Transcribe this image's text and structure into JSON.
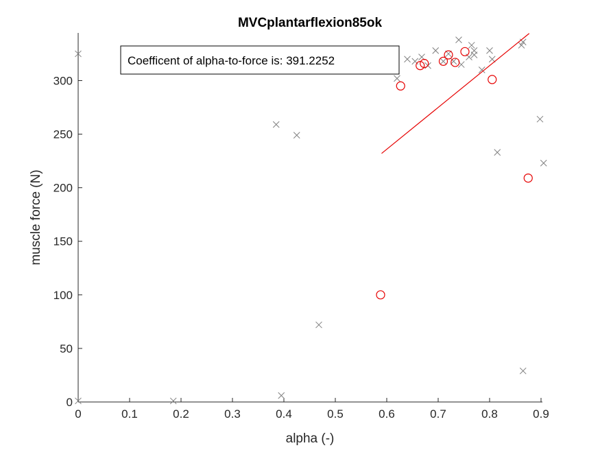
{
  "chart_data": {
    "type": "scatter",
    "title": "MVCplantarflexion85ok",
    "xlabel": "alpha (-)",
    "ylabel": "muscle force (N)",
    "xlim": [
      0,
      0.9
    ],
    "ylim": [
      0,
      340
    ],
    "xticks": [
      0,
      0.1,
      0.2,
      0.3,
      0.4,
      0.5,
      0.6,
      0.7,
      0.8,
      0.9
    ],
    "xtick_labels": [
      "0",
      "0.1",
      "0.2",
      "0.3",
      "0.4",
      "0.5",
      "0.6",
      "0.7",
      "0.8",
      "0.9"
    ],
    "yticks": [
      0,
      50,
      100,
      150,
      200,
      250,
      300
    ],
    "ytick_labels": [
      "0",
      "50",
      "100",
      "150",
      "200",
      "250",
      "300"
    ],
    "grid": false,
    "annotation": "Coefficent of alpha-to-force is: 391.2252",
    "series": [
      {
        "marker": "x",
        "color": "#7f7f7f",
        "points": [
          [
            0.0,
            325
          ],
          [
            0.0,
            1
          ],
          [
            0.185,
            1
          ],
          [
            0.385,
            259
          ],
          [
            0.395,
            6
          ],
          [
            0.425,
            249
          ],
          [
            0.468,
            72
          ],
          [
            0.58,
            312
          ],
          [
            0.605,
            315
          ],
          [
            0.62,
            302
          ],
          [
            0.64,
            320
          ],
          [
            0.655,
            318
          ],
          [
            0.668,
            322
          ],
          [
            0.68,
            314
          ],
          [
            0.695,
            328
          ],
          [
            0.71,
            318
          ],
          [
            0.72,
            325
          ],
          [
            0.73,
            318
          ],
          [
            0.74,
            338
          ],
          [
            0.745,
            315
          ],
          [
            0.76,
            322
          ],
          [
            0.765,
            333
          ],
          [
            0.77,
            328
          ],
          [
            0.77,
            324
          ],
          [
            0.785,
            310
          ],
          [
            0.8,
            328
          ],
          [
            0.805,
            320
          ],
          [
            0.815,
            233
          ],
          [
            0.862,
            333
          ],
          [
            0.865,
            336
          ],
          [
            0.865,
            29
          ],
          [
            0.898,
            264
          ],
          [
            0.905,
            223
          ]
        ]
      },
      {
        "marker": "o",
        "color": "#e60000",
        "points": [
          [
            0.588,
            100
          ],
          [
            0.627,
            295
          ],
          [
            0.665,
            314
          ],
          [
            0.673,
            316
          ],
          [
            0.71,
            318
          ],
          [
            0.72,
            324
          ],
          [
            0.733,
            317
          ],
          [
            0.752,
            327
          ],
          [
            0.805,
            301
          ],
          [
            0.875,
            209
          ]
        ]
      }
    ],
    "fit_line": {
      "color": "#e60000",
      "x": [
        0.59,
        0.877
      ],
      "y": [
        232,
        344
      ]
    }
  }
}
